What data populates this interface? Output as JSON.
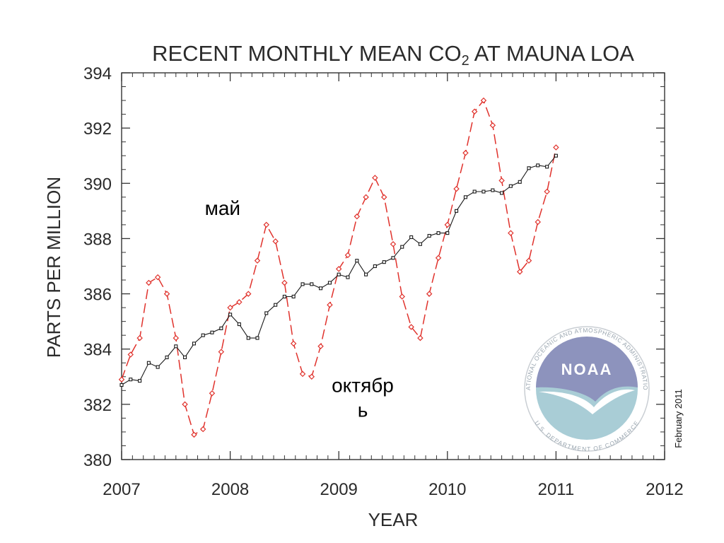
{
  "chart_data": {
    "type": "line",
    "title_prefix": "RECENT MONTHLY MEAN CO",
    "title_subscript": "2",
    "title_suffix": " AT MAUNA LOA",
    "xlabel": "YEAR",
    "ylabel": "PARTS PER MILLION",
    "xlim": [
      2007,
      2012
    ],
    "ylim": [
      380,
      394
    ],
    "x_ticks": [
      2007,
      2008,
      2009,
      2010,
      2011,
      2012
    ],
    "y_ticks": [
      380,
      382,
      384,
      386,
      388,
      390,
      392,
      394
    ],
    "grid": false,
    "series": [
      {
        "style": "dashed",
        "color": "#e0322c",
        "marker": "diamond",
        "x": [
          2007.0,
          2007.083,
          2007.167,
          2007.25,
          2007.333,
          2007.417,
          2007.5,
          2007.583,
          2007.667,
          2007.75,
          2007.833,
          2007.917,
          2008.0,
          2008.083,
          2008.167,
          2008.25,
          2008.333,
          2008.417,
          2008.5,
          2008.583,
          2008.667,
          2008.75,
          2008.833,
          2008.917,
          2009.0,
          2009.083,
          2009.167,
          2009.25,
          2009.333,
          2009.417,
          2009.5,
          2009.583,
          2009.667,
          2009.75,
          2009.833,
          2009.917,
          2010.0,
          2010.083,
          2010.167,
          2010.25,
          2010.333,
          2010.417,
          2010.5,
          2010.583,
          2010.667,
          2010.75,
          2010.833,
          2010.917,
          2011.0
        ],
        "y": [
          382.9,
          383.8,
          384.4,
          386.4,
          386.6,
          386.0,
          384.4,
          382.0,
          380.9,
          381.1,
          382.4,
          383.9,
          385.5,
          385.7,
          386.0,
          387.2,
          388.5,
          387.9,
          386.4,
          384.2,
          383.1,
          383.0,
          384.1,
          385.6,
          386.9,
          387.4,
          388.8,
          389.5,
          390.2,
          389.5,
          387.8,
          385.9,
          384.8,
          384.4,
          386.0,
          387.3,
          388.5,
          389.8,
          391.1,
          392.6,
          393.0,
          392.1,
          390.1,
          388.2,
          386.8,
          387.2,
          388.6,
          389.7,
          391.3
        ]
      },
      {
        "style": "solid",
        "color": "#1a1a1a",
        "marker": "square",
        "x": [
          2007.0,
          2007.083,
          2007.167,
          2007.25,
          2007.333,
          2007.417,
          2007.5,
          2007.583,
          2007.667,
          2007.75,
          2007.833,
          2007.917,
          2008.0,
          2008.083,
          2008.167,
          2008.25,
          2008.333,
          2008.417,
          2008.5,
          2008.583,
          2008.667,
          2008.75,
          2008.833,
          2008.917,
          2009.0,
          2009.083,
          2009.167,
          2009.25,
          2009.333,
          2009.417,
          2009.5,
          2009.583,
          2009.667,
          2009.75,
          2009.833,
          2009.917,
          2010.0,
          2010.083,
          2010.167,
          2010.25,
          2010.333,
          2010.417,
          2010.5,
          2010.583,
          2010.667,
          2010.75,
          2010.833,
          2010.917,
          2011.0
        ],
        "y": [
          382.7,
          382.9,
          382.85,
          383.5,
          383.35,
          383.7,
          384.1,
          383.7,
          384.2,
          384.5,
          384.6,
          384.75,
          385.25,
          384.9,
          384.4,
          384.4,
          385.3,
          385.6,
          385.9,
          385.9,
          386.35,
          386.35,
          386.2,
          386.4,
          386.7,
          386.6,
          387.2,
          386.7,
          387.0,
          387.15,
          387.3,
          387.7,
          388.05,
          387.8,
          388.1,
          388.2,
          388.2,
          389.0,
          389.5,
          389.7,
          389.7,
          389.75,
          389.65,
          389.9,
          390.05,
          390.55,
          390.65,
          390.6,
          391.0
        ]
      }
    ],
    "annotations": [
      {
        "text": "май",
        "x": 2007.93,
        "y": 388.85
      },
      {
        "text": "октябр",
        "x": 2009.22,
        "y": 382.45
      },
      {
        "text": "ь",
        "x": 2009.22,
        "y": 381.55
      }
    ]
  },
  "footnote": "February 2011",
  "logo": {
    "name": "NOAA",
    "ring_text": "NATIONAL OCEANIC AND ATMOSPHERIC ADMINISTRATION",
    "bottom_text": "U.S. DEPARTMENT OF COMMERCE",
    "color_sky": "#8d93bd",
    "color_sea": "#a9cdd6"
  }
}
